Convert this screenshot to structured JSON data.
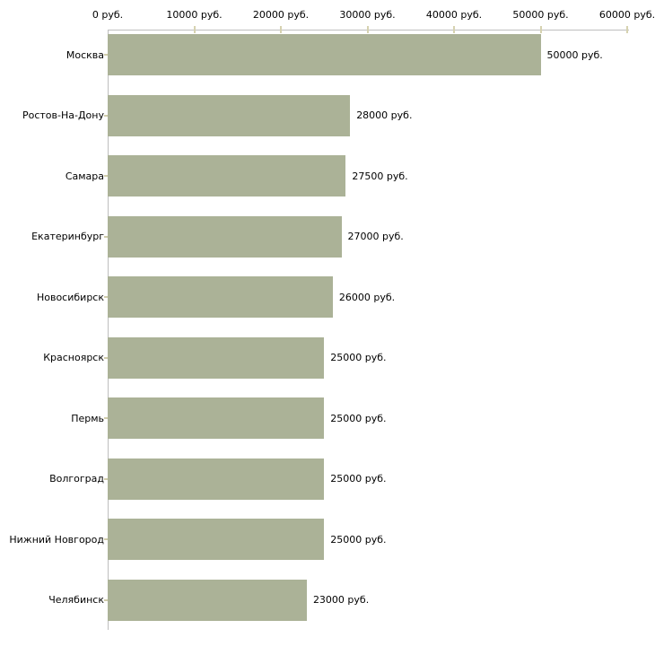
{
  "chart_data": {
    "type": "bar",
    "orientation": "horizontal",
    "title": "",
    "unit": "руб.",
    "categories": [
      "Москва",
      "Ростов-На-Дону",
      "Самара",
      "Екатеринбург",
      "Новосибирск",
      "Красноярск",
      "Пермь",
      "Волгоград",
      "Нижний Новгород",
      "Челябинск"
    ],
    "values": [
      50000,
      28000,
      27500,
      27000,
      26000,
      25000,
      25000,
      25000,
      25000,
      23000
    ],
    "value_labels": [
      "50000 руб.",
      "28000 руб.",
      "27500 руб.",
      "27000 руб.",
      "26000 руб.",
      "25000 руб.",
      "25000 руб.",
      "25000 руб.",
      "25000 руб.",
      "23000 руб."
    ],
    "x_axis": {
      "position": "top",
      "xlim": [
        0,
        60000
      ],
      "tick_values": [
        0,
        10000,
        20000,
        30000,
        40000,
        50000,
        60000
      ],
      "tick_labels": [
        "0 руб.",
        "10000 руб.",
        "20000 руб.",
        "30000 руб.",
        "40000 руб.",
        "50000 руб.",
        "60000 руб."
      ]
    },
    "grid": false,
    "legend": false,
    "colors": {
      "bar": "#abb297",
      "axis_line": "#bebebe",
      "tick_mark": "#d6d2b0",
      "category_tick": "#d0ccab",
      "text": "#000000",
      "background": "#ffffff"
    }
  }
}
